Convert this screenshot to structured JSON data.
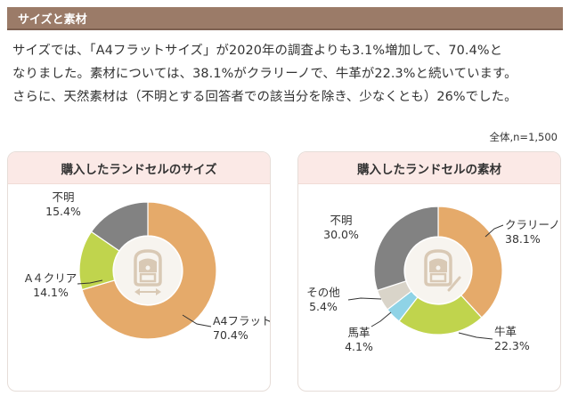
{
  "header": {
    "title": "サイズと素材"
  },
  "body": {
    "lines": [
      "サイズでは、「A4フラットサイズ」が2020年の調査よりも3.1%増加して、70.4%と",
      "なりました。素材については、38.1%がクラリーノで、牛革が22.3%と続いています。",
      "さらに、天然素材は（不明とする回答者での該当分を除き、少なくとも）26%でした。"
    ]
  },
  "note": "全体,n=1,500",
  "colors": {
    "header_bg": "#9b7b68",
    "panel_head_bg": "#fbe9e6",
    "center_circle": "#f7f4ef",
    "icon": "#d9c9b5"
  },
  "chart_data": [
    {
      "type": "pie",
      "title": "購入したランドセルのサイズ",
      "labels": [
        "A4フラット",
        "A４クリア",
        "不明"
      ],
      "values": [
        70.4,
        14.1,
        15.4
      ],
      "value_labels": [
        "70.4%",
        "14.1%",
        "15.4%"
      ],
      "colors": [
        "#e5aa6a",
        "#c0d44d",
        "#828282"
      ]
    },
    {
      "type": "pie",
      "title": "購入したランドセルの素材",
      "labels": [
        "クラリーノ",
        "牛革",
        "馬革",
        "その他",
        "不明"
      ],
      "values": [
        38.1,
        22.3,
        4.1,
        5.4,
        30.0
      ],
      "value_labels": [
        "38.1%",
        "22.3%",
        "4.1%",
        "5.4%",
        "30.0%"
      ],
      "colors": [
        "#e5aa6a",
        "#c0d44d",
        "#8fd3e6",
        "#d9d4c9",
        "#828282"
      ]
    }
  ]
}
